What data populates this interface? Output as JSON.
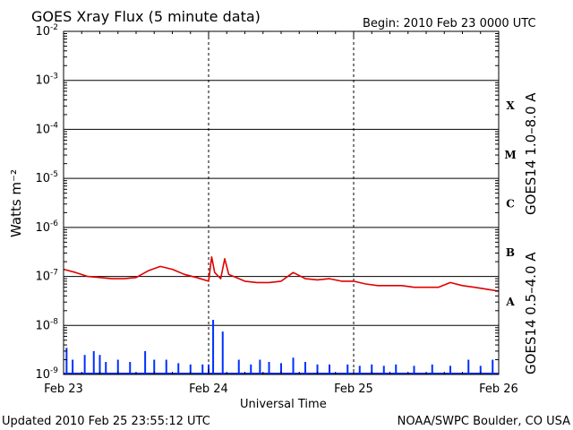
{
  "header": {
    "title": "GOES Xray Flux (5 minute data)",
    "begin": "Begin:  2010 Feb 23 0000 UTC"
  },
  "footer": {
    "updated": "Updated 2010 Feb 25 23:55:12 UTC",
    "credit": "NOAA/SWPC Boulder, CO USA"
  },
  "chart_data": {
    "type": "line",
    "title": "GOES Xray Flux (5 minute data)",
    "xlabel": "Universal Time",
    "ylabel": "Watts m⁻²",
    "yscale": "log",
    "ylim": [
      1e-09,
      0.01
    ],
    "xlim": [
      "2010-02-23 00:00",
      "2010-02-26 00:00"
    ],
    "y_ticks": [
      {
        "base": "10",
        "exp": "-2"
      },
      {
        "base": "10",
        "exp": "-3"
      },
      {
        "base": "10",
        "exp": "-4"
      },
      {
        "base": "10",
        "exp": "-5"
      },
      {
        "base": "10",
        "exp": "-6"
      },
      {
        "base": "10",
        "exp": "-7"
      },
      {
        "base": "10",
        "exp": "-8"
      },
      {
        "base": "10",
        "exp": "-9"
      }
    ],
    "x_ticks": [
      "Feb 23",
      "Feb 24",
      "Feb 25",
      "Feb 26"
    ],
    "flare_classes": [
      "X",
      "M",
      "C",
      "B",
      "A"
    ],
    "grid": true,
    "series": [
      {
        "name": "GOES14 1.0–8.0 A",
        "color": "#e00000",
        "style": "line",
        "points": [
          [
            "2010-02-23 00:00",
            1.4e-07
          ],
          [
            "2010-02-23 02:00",
            1.2e-07
          ],
          [
            "2010-02-23 04:00",
            1e-07
          ],
          [
            "2010-02-23 06:00",
            9.5e-08
          ],
          [
            "2010-02-23 08:00",
            9e-08
          ],
          [
            "2010-02-23 10:00",
            9e-08
          ],
          [
            "2010-02-23 12:00",
            9.5e-08
          ],
          [
            "2010-02-23 14:00",
            1.3e-07
          ],
          [
            "2010-02-23 16:00",
            1.6e-07
          ],
          [
            "2010-02-23 18:00",
            1.4e-07
          ],
          [
            "2010-02-23 20:00",
            1.1e-07
          ],
          [
            "2010-02-23 22:00",
            9.5e-08
          ],
          [
            "2010-02-24 00:00",
            8e-08
          ],
          [
            "2010-02-24 00:30",
            2.5e-07
          ],
          [
            "2010-02-24 01:00",
            1.2e-07
          ],
          [
            "2010-02-24 02:00",
            9e-08
          ],
          [
            "2010-02-24 02:40",
            2.3e-07
          ],
          [
            "2010-02-24 03:20",
            1.1e-07
          ],
          [
            "2010-02-24 06:00",
            8e-08
          ],
          [
            "2010-02-24 08:00",
            7.5e-08
          ],
          [
            "2010-02-24 10:00",
            7.5e-08
          ],
          [
            "2010-02-24 12:00",
            8e-08
          ],
          [
            "2010-02-24 14:00",
            1.2e-07
          ],
          [
            "2010-02-24 16:00",
            9e-08
          ],
          [
            "2010-02-24 18:00",
            8.5e-08
          ],
          [
            "2010-02-24 20:00",
            9e-08
          ],
          [
            "2010-02-24 22:00",
            8e-08
          ],
          [
            "2010-02-25 00:00",
            8e-08
          ],
          [
            "2010-02-25 02:00",
            7e-08
          ],
          [
            "2010-02-25 04:00",
            6.5e-08
          ],
          [
            "2010-02-25 06:00",
            6.5e-08
          ],
          [
            "2010-02-25 08:00",
            6.5e-08
          ],
          [
            "2010-02-25 10:00",
            6e-08
          ],
          [
            "2010-02-25 12:00",
            6e-08
          ],
          [
            "2010-02-25 14:00",
            6e-08
          ],
          [
            "2010-02-25 16:00",
            7.5e-08
          ],
          [
            "2010-02-25 18:00",
            6.5e-08
          ],
          [
            "2010-02-25 20:00",
            6e-08
          ],
          [
            "2010-02-25 22:00",
            5.5e-08
          ],
          [
            "2010-02-26 00:00",
            5e-08
          ]
        ]
      },
      {
        "name": "GOES14 0.5–4.0 A",
        "color": "#0030ff",
        "style": "spikes",
        "baseline": 1e-09,
        "points": [
          [
            "2010-02-23 00:30",
            3.5e-09
          ],
          [
            "2010-02-23 01:30",
            2e-09
          ],
          [
            "2010-02-23 03:30",
            2.5e-09
          ],
          [
            "2010-02-23 05:00",
            3e-09
          ],
          [
            "2010-02-23 06:00",
            2.5e-09
          ],
          [
            "2010-02-23 07:00",
            1.8e-09
          ],
          [
            "2010-02-23 09:00",
            2e-09
          ],
          [
            "2010-02-23 11:00",
            1.8e-09
          ],
          [
            "2010-02-23 13:30",
            3e-09
          ],
          [
            "2010-02-23 15:00",
            2e-09
          ],
          [
            "2010-02-23 17:00",
            2e-09
          ],
          [
            "2010-02-23 19:00",
            1.7e-09
          ],
          [
            "2010-02-23 21:00",
            1.6e-09
          ],
          [
            "2010-02-23 23:00",
            1.6e-09
          ],
          [
            "2010-02-24 00:00",
            1.6e-09
          ],
          [
            "2010-02-24 00:45",
            1.3e-08
          ],
          [
            "2010-02-24 02:20",
            7.5e-09
          ],
          [
            "2010-02-24 05:00",
            2e-09
          ],
          [
            "2010-02-24 07:00",
            1.6e-09
          ],
          [
            "2010-02-24 08:30",
            2e-09
          ],
          [
            "2010-02-24 10:00",
            1.8e-09
          ],
          [
            "2010-02-24 12:00",
            1.7e-09
          ],
          [
            "2010-02-24 14:00",
            2.2e-09
          ],
          [
            "2010-02-24 16:00",
            1.8e-09
          ],
          [
            "2010-02-24 18:00",
            1.6e-09
          ],
          [
            "2010-02-24 20:00",
            1.6e-09
          ],
          [
            "2010-02-24 23:00",
            1.6e-09
          ],
          [
            "2010-02-25 01:00",
            1.5e-09
          ],
          [
            "2010-02-25 03:00",
            1.6e-09
          ],
          [
            "2010-02-25 05:00",
            1.5e-09
          ],
          [
            "2010-02-25 07:00",
            1.6e-09
          ],
          [
            "2010-02-25 10:00",
            1.5e-09
          ],
          [
            "2010-02-25 13:00",
            1.6e-09
          ],
          [
            "2010-02-25 16:00",
            1.5e-09
          ],
          [
            "2010-02-25 19:00",
            2e-09
          ],
          [
            "2010-02-25 21:00",
            1.5e-09
          ],
          [
            "2010-02-25 23:00",
            2e-09
          ]
        ]
      }
    ]
  }
}
